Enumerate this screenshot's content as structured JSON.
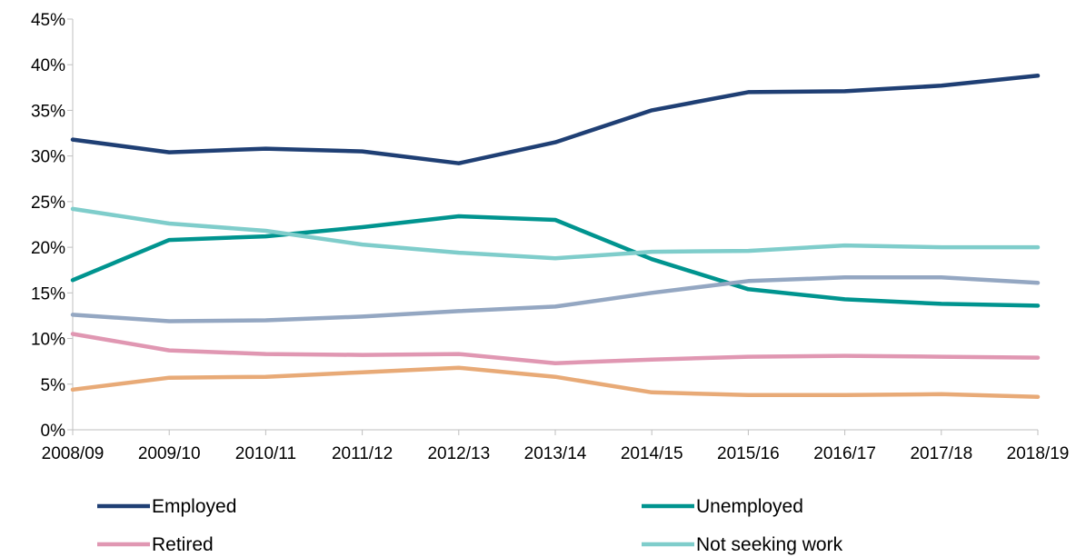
{
  "chart_data": {
    "type": "line",
    "title": "",
    "xlabel": "",
    "ylabel": "",
    "ylim": [
      0,
      45
    ],
    "y_ticks": [
      "0%",
      "5%",
      "10%",
      "15%",
      "20%",
      "25%",
      "30%",
      "35%",
      "40%",
      "45%"
    ],
    "y_tick_values": [
      0,
      5,
      10,
      15,
      20,
      25,
      30,
      35,
      40,
      45
    ],
    "categories": [
      "2008/09",
      "2009/10",
      "2010/11",
      "2011/12",
      "2012/13",
      "2013/14",
      "2014/15",
      "2015/16",
      "2016/17",
      "2017/18",
      "2018/19"
    ],
    "grid": false,
    "legend_position": "bottom",
    "series": [
      {
        "name": "Employed",
        "color": "#1f3f74",
        "values": [
          31.8,
          30.4,
          30.8,
          30.5,
          29.2,
          31.5,
          35.0,
          37.0,
          37.1,
          37.7,
          38.8
        ]
      },
      {
        "name": "Unemployed",
        "color": "#00948f",
        "values": [
          16.4,
          20.8,
          21.2,
          22.2,
          23.4,
          23.0,
          18.7,
          15.4,
          14.3,
          13.8,
          13.6
        ]
      },
      {
        "name": "Retired",
        "color": "#e097b2",
        "values": [
          10.5,
          8.7,
          8.3,
          8.2,
          8.3,
          7.3,
          7.7,
          8.0,
          8.1,
          8.0,
          7.9
        ]
      },
      {
        "name": "Not seeking work",
        "color": "#7fcdcb",
        "values": [
          24.2,
          22.6,
          21.8,
          20.3,
          19.4,
          18.8,
          19.5,
          19.6,
          20.2,
          20.0,
          20.0
        ]
      },
      {
        "color": "#94a7c2",
        "values": [
          12.6,
          11.9,
          12.0,
          12.4,
          13.0,
          13.5,
          15.0,
          16.3,
          16.7,
          16.7,
          16.1
        ]
      },
      {
        "color": "#e8aa77",
        "values": [
          4.4,
          5.7,
          5.8,
          6.3,
          6.8,
          5.8,
          4.1,
          3.8,
          3.8,
          3.9,
          3.6
        ]
      }
    ],
    "legend": [
      {
        "name": "Employed",
        "color": "#1f3f74"
      },
      {
        "name": "Unemployed",
        "color": "#00948f"
      },
      {
        "name": "Retired",
        "color": "#e097b2"
      },
      {
        "name": "Not seeking work",
        "color": "#7fcdcb"
      }
    ]
  }
}
